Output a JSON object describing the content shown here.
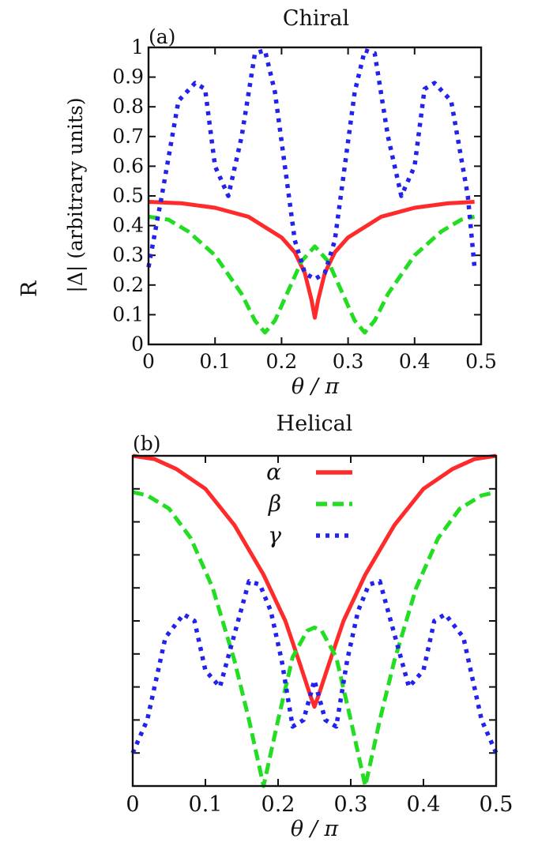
{
  "chart_data": [
    {
      "type": "line",
      "title": "Chiral",
      "panel_label": "(a)",
      "ylabel_line1": "R",
      "ylabel_line2": "|Δ| (arbitrary units)",
      "xlabel": "θ / π",
      "xlim": [
        0,
        0.5
      ],
      "ylim": [
        0,
        1
      ],
      "xticks": [
        "0",
        "0.1",
        "0.2",
        "0.3",
        "0.4",
        "0.5"
      ],
      "yticks": [
        "0",
        "0.1",
        "0.2",
        "0.3",
        "0.4",
        "0.5",
        "0.6",
        "0.7",
        "0.8",
        "0.9",
        "1"
      ],
      "series": [
        {
          "name": "α",
          "color": "#ff2a2a",
          "style": "solid",
          "x": [
            0,
            0.05,
            0.1,
            0.15,
            0.2,
            0.22,
            0.235,
            0.245,
            0.25,
            0.255,
            0.265,
            0.28,
            0.3,
            0.35,
            0.4,
            0.45,
            0.49
          ],
          "y": [
            0.48,
            0.475,
            0.46,
            0.43,
            0.36,
            0.31,
            0.24,
            0.15,
            0.09,
            0.15,
            0.24,
            0.31,
            0.36,
            0.43,
            0.46,
            0.475,
            0.48
          ]
        },
        {
          "name": "β",
          "color": "#22dd22",
          "style": "dashed",
          "x": [
            0,
            0.03,
            0.06,
            0.1,
            0.14,
            0.16,
            0.175,
            0.19,
            0.21,
            0.23,
            0.25,
            0.27,
            0.29,
            0.31,
            0.325,
            0.34,
            0.36,
            0.4,
            0.44,
            0.47,
            0.49
          ],
          "y": [
            0.43,
            0.42,
            0.38,
            0.3,
            0.17,
            0.08,
            0.04,
            0.08,
            0.18,
            0.28,
            0.33,
            0.28,
            0.18,
            0.08,
            0.04,
            0.08,
            0.17,
            0.3,
            0.38,
            0.42,
            0.43
          ]
        },
        {
          "name": "γ",
          "color": "#2222ee",
          "style": "dotted",
          "x": [
            0,
            0.02,
            0.045,
            0.07,
            0.085,
            0.1,
            0.12,
            0.14,
            0.16,
            0.175,
            0.19,
            0.205,
            0.22,
            0.235,
            0.25,
            0.265,
            0.28,
            0.295,
            0.31,
            0.325,
            0.34,
            0.36,
            0.38,
            0.4,
            0.415,
            0.43,
            0.455,
            0.48,
            0.49
          ],
          "y": [
            0.26,
            0.5,
            0.82,
            0.88,
            0.86,
            0.6,
            0.5,
            0.7,
            0.98,
            0.99,
            0.85,
            0.6,
            0.35,
            0.24,
            0.22,
            0.24,
            0.35,
            0.6,
            0.85,
            0.99,
            0.98,
            0.7,
            0.5,
            0.6,
            0.86,
            0.88,
            0.82,
            0.5,
            0.26
          ]
        }
      ]
    },
    {
      "type": "line",
      "title": "Helical",
      "panel_label": "(b)",
      "xlabel": "θ / π",
      "xlim": [
        0,
        0.5
      ],
      "ylim": [
        0,
        1
      ],
      "xticks": [
        "0",
        "0.1",
        "0.2",
        "0.3",
        "0.4",
        "0.5"
      ],
      "legend_position": "top-center",
      "series": [
        {
          "name": "α",
          "color": "#ff2a2a",
          "style": "solid",
          "x": [
            0,
            0.03,
            0.06,
            0.1,
            0.14,
            0.18,
            0.21,
            0.23,
            0.245,
            0.25,
            0.255,
            0.27,
            0.29,
            0.32,
            0.36,
            0.4,
            0.44,
            0.47,
            0.5
          ],
          "y": [
            1.0,
            0.99,
            0.96,
            0.9,
            0.79,
            0.64,
            0.5,
            0.37,
            0.27,
            0.24,
            0.27,
            0.37,
            0.5,
            0.64,
            0.79,
            0.9,
            0.96,
            0.99,
            1.0
          ]
        },
        {
          "name": "β",
          "color": "#22dd22",
          "style": "dashed",
          "x": [
            0,
            0.02,
            0.05,
            0.08,
            0.11,
            0.14,
            0.16,
            0.18,
            0.2,
            0.22,
            0.24,
            0.25,
            0.26,
            0.28,
            0.3,
            0.32,
            0.34,
            0.36,
            0.39,
            0.42,
            0.45,
            0.48,
            0.5
          ],
          "y": [
            0.89,
            0.88,
            0.84,
            0.75,
            0.6,
            0.38,
            0.2,
            0.0,
            0.2,
            0.39,
            0.47,
            0.48,
            0.47,
            0.39,
            0.2,
            0.0,
            0.2,
            0.38,
            0.6,
            0.75,
            0.84,
            0.88,
            0.89
          ]
        },
        {
          "name": "γ",
          "color": "#2222ee",
          "style": "dotted",
          "x": [
            0,
            0.02,
            0.045,
            0.07,
            0.085,
            0.1,
            0.12,
            0.14,
            0.16,
            0.175,
            0.19,
            0.205,
            0.22,
            0.235,
            0.25,
            0.265,
            0.28,
            0.295,
            0.31,
            0.325,
            0.34,
            0.36,
            0.38,
            0.4,
            0.415,
            0.43,
            0.455,
            0.48,
            0.5
          ],
          "y": [
            0.1,
            0.2,
            0.45,
            0.52,
            0.5,
            0.35,
            0.3,
            0.46,
            0.62,
            0.61,
            0.53,
            0.38,
            0.18,
            0.2,
            0.32,
            0.2,
            0.18,
            0.38,
            0.53,
            0.61,
            0.62,
            0.46,
            0.3,
            0.35,
            0.5,
            0.52,
            0.45,
            0.2,
            0.1
          ]
        }
      ]
    }
  ]
}
